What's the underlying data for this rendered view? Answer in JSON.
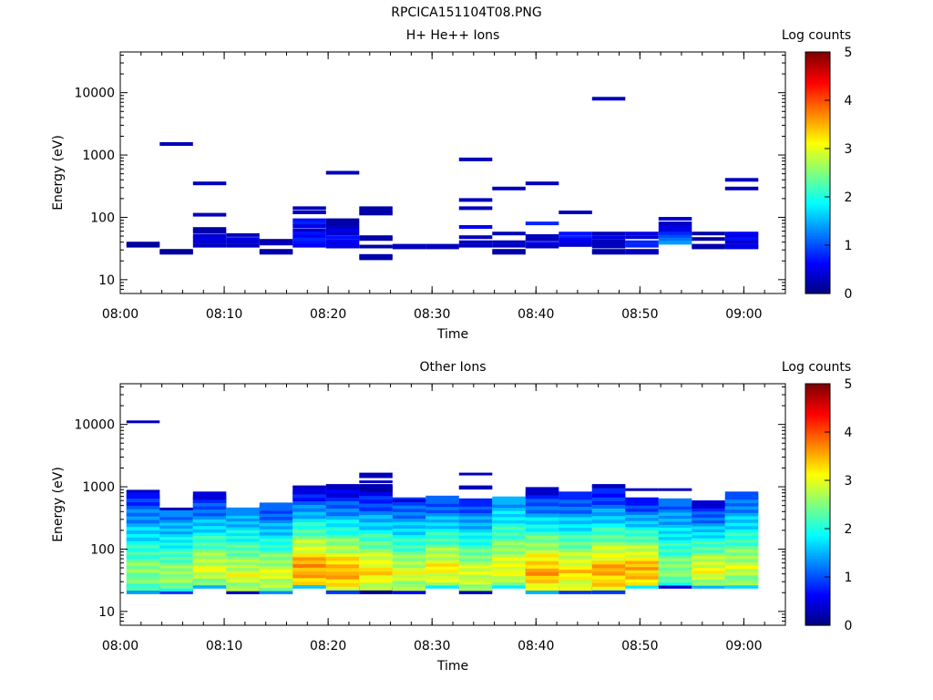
{
  "page_title": "RPCICA151104T08.PNG",
  "chart_data": [
    {
      "type": "heatmap",
      "title": "H+ He++ Ions",
      "xlabel": "Time",
      "ylabel": "Energy (eV)",
      "yscale": "log",
      "xlim": [
        "08:00",
        "09:04"
      ],
      "ylim": [
        6,
        45000
      ],
      "x_ticks": [
        "08:00",
        "08:10",
        "08:20",
        "08:30",
        "08:40",
        "08:50",
        "09:00"
      ],
      "y_ticks": [
        "10",
        "100",
        "1000",
        "10000"
      ],
      "colorbar": {
        "label": "Log counts",
        "range": [
          0,
          5
        ],
        "ticks": [
          "0",
          "1",
          "2",
          "3",
          "4",
          "5"
        ],
        "colormap": "jet"
      },
      "time_bins": [
        "08:02.2",
        "08:05.4",
        "08:08.6",
        "08:11.8",
        "08:15.0",
        "08:18.2",
        "08:21.4",
        "08:24.6",
        "08:27.8",
        "08:31.0",
        "08:34.2",
        "08:37.4",
        "08:40.6",
        "08:43.8",
        "08:47.0",
        "08:50.2",
        "08:53.4",
        "08:56.6",
        "08:59.8"
      ],
      "cells": [
        [
          0,
          38,
          0.15
        ],
        [
          0,
          35,
          0.15
        ],
        [
          1,
          1500,
          0.3
        ],
        [
          1,
          29,
          0.15
        ],
        [
          1,
          27,
          0.15
        ],
        [
          2,
          350,
          0.3
        ],
        [
          2,
          110,
          0.3
        ],
        [
          2,
          65,
          0.2
        ],
        [
          2,
          58,
          0.2
        ],
        [
          2,
          50,
          0.4
        ],
        [
          2,
          45,
          0.5
        ],
        [
          2,
          40,
          0.4
        ],
        [
          2,
          35,
          0.3
        ],
        [
          3,
          52,
          0.3
        ],
        [
          3,
          45,
          0.5
        ],
        [
          3,
          40,
          0.4
        ],
        [
          3,
          35,
          0.3
        ],
        [
          4,
          42,
          0.2
        ],
        [
          4,
          38,
          0.3
        ],
        [
          4,
          29,
          0.2
        ],
        [
          4,
          27,
          0.2
        ],
        [
          5,
          140,
          0.3
        ],
        [
          5,
          120,
          0.3
        ],
        [
          5,
          90,
          0.7
        ],
        [
          5,
          80,
          0.8
        ],
        [
          5,
          72,
          0.5
        ],
        [
          5,
          62,
          0.4
        ],
        [
          5,
          55,
          0.7
        ],
        [
          5,
          49,
          0.6
        ],
        [
          5,
          44,
          0.8
        ],
        [
          5,
          39,
          0.7
        ],
        [
          5,
          35,
          0.6
        ],
        [
          6,
          520,
          0.3
        ],
        [
          6,
          90,
          0.2
        ],
        [
          6,
          80,
          0.2
        ],
        [
          6,
          70,
          0.3
        ],
        [
          6,
          62,
          0.5
        ],
        [
          6,
          55,
          0.4
        ],
        [
          6,
          48,
          0.7
        ],
        [
          6,
          42,
          0.6
        ],
        [
          6,
          38,
          0.5
        ],
        [
          6,
          34,
          0.5
        ],
        [
          7,
          140,
          0.2
        ],
        [
          7,
          125,
          0.2
        ],
        [
          7,
          115,
          0.2
        ],
        [
          7,
          48,
          0.2
        ],
        [
          7,
          45,
          0.2
        ],
        [
          7,
          34,
          0.2
        ],
        [
          7,
          24,
          0.2
        ],
        [
          7,
          22,
          0.2
        ],
        [
          8,
          35,
          0.3
        ],
        [
          8,
          33,
          0.3
        ],
        [
          9,
          35,
          0.3
        ],
        [
          9,
          33,
          0.3
        ],
        [
          10,
          850,
          0.3
        ],
        [
          10,
          190,
          0.3
        ],
        [
          10,
          140,
          0.3
        ],
        [
          10,
          70,
          0.6
        ],
        [
          10,
          48,
          0.3
        ],
        [
          10,
          40,
          0.3
        ],
        [
          10,
          35,
          0.3
        ],
        [
          11,
          290,
          0.3
        ],
        [
          11,
          55,
          0.3
        ],
        [
          11,
          40,
          0.3
        ],
        [
          11,
          35,
          0.3
        ],
        [
          11,
          29,
          0.2
        ],
        [
          11,
          27,
          0.2
        ],
        [
          12,
          350,
          0.3
        ],
        [
          12,
          80,
          0.8
        ],
        [
          12,
          50,
          0.3
        ],
        [
          12,
          44,
          0.3
        ],
        [
          12,
          38,
          0.5
        ],
        [
          12,
          34,
          0.3
        ],
        [
          13,
          120,
          0.3
        ],
        [
          13,
          55,
          0.7
        ],
        [
          13,
          48,
          0.8
        ],
        [
          13,
          44,
          0.6
        ],
        [
          13,
          40,
          0.5
        ],
        [
          13,
          36,
          0.4
        ],
        [
          14,
          8000,
          0.3
        ],
        [
          14,
          55,
          0.3
        ],
        [
          14,
          48,
          0.5
        ],
        [
          14,
          42,
          0.3
        ],
        [
          14,
          38,
          0.3
        ],
        [
          14,
          34,
          0.3
        ],
        [
          14,
          29,
          0.2
        ],
        [
          14,
          27,
          0.2
        ],
        [
          15,
          55,
          0.5
        ],
        [
          15,
          48,
          0.4
        ],
        [
          15,
          40,
          0.8
        ],
        [
          15,
          35,
          0.8
        ],
        [
          15,
          29,
          0.3
        ],
        [
          15,
          27,
          0.3
        ],
        [
          16,
          95,
          0.4
        ],
        [
          16,
          80,
          0.3
        ],
        [
          16,
          70,
          0.5
        ],
        [
          16,
          62,
          0.5
        ],
        [
          16,
          55,
          0.8
        ],
        [
          16,
          49,
          1.0
        ],
        [
          16,
          44,
          1.2
        ],
        [
          16,
          39,
          1.4
        ],
        [
          17,
          55,
          0.2
        ],
        [
          17,
          45,
          0.2
        ],
        [
          17,
          35,
          0.2
        ],
        [
          17,
          33,
          0.2
        ],
        [
          18,
          400,
          0.3
        ],
        [
          18,
          290,
          0.3
        ],
        [
          18,
          55,
          0.6
        ],
        [
          18,
          50,
          0.5
        ],
        [
          18,
          45,
          0.7
        ],
        [
          18,
          40,
          0.4
        ],
        [
          18,
          35,
          0.5
        ],
        [
          18,
          33,
          0.5
        ]
      ]
    },
    {
      "type": "heatmap",
      "title": "Other Ions",
      "xlabel": "Time",
      "ylabel": "Energy (eV)",
      "yscale": "log",
      "xlim": [
        "08:00",
        "09:04"
      ],
      "ylim": [
        6,
        45000
      ],
      "x_ticks": [
        "08:00",
        "08:10",
        "08:20",
        "08:30",
        "08:40",
        "08:50",
        "09:00"
      ],
      "y_ticks": [
        "10",
        "100",
        "1000",
        "10000"
      ],
      "colorbar": {
        "label": "Log counts",
        "range": [
          0,
          5
        ],
        "ticks": [
          "0",
          "1",
          "2",
          "3",
          "4",
          "5"
        ],
        "colormap": "jet"
      },
      "time_bins": [
        "08:02.2",
        "08:05.4",
        "08:08.6",
        "08:11.8",
        "08:15.0",
        "08:18.2",
        "08:21.4",
        "08:24.6",
        "08:27.8",
        "08:31.0",
        "08:34.2",
        "08:37.4",
        "08:40.6",
        "08:43.8",
        "08:47.0",
        "08:50.2",
        "08:53.4",
        "08:56.6",
        "08:59.8"
      ],
      "sparse_cells": [
        [
          0,
          11000,
          0.3
        ],
        [
          0,
          850,
          0.3
        ],
        [
          1,
          440,
          0.3
        ],
        [
          5,
          1000,
          0.3
        ],
        [
          6,
          1050,
          0.3
        ],
        [
          6,
          950,
          0.3
        ],
        [
          7,
          1600,
          0.3
        ],
        [
          7,
          1450,
          0.3
        ],
        [
          7,
          1200,
          0.4
        ],
        [
          7,
          1000,
          0.3
        ],
        [
          8,
          600,
          0.4
        ],
        [
          10,
          1600,
          0.3
        ],
        [
          10,
          1000,
          0.3
        ],
        [
          10,
          950,
          0.3
        ],
        [
          14,
          1050,
          0.3
        ],
        [
          14,
          1000,
          0.3
        ],
        [
          15,
          900,
          0.3
        ],
        [
          16,
          900,
          0.3
        ],
        [
          17,
          520,
          0.3
        ]
      ],
      "columns": [
        {
          "top": 750,
          "bottom": 22,
          "low_band": 1.4,
          "max_color": 2.6,
          "top_color": 0.8
        },
        {
          "top": 380,
          "bottom": 22,
          "low_band": 0.9,
          "max_color": 2.7,
          "top_color": 1.2
        },
        {
          "top": 720,
          "bottom": 27,
          "low_band": 1.5,
          "max_color": 3.0,
          "top_color": 0.7
        },
        {
          "top": 400,
          "bottom": 22,
          "low_band": 0.3,
          "max_color": 3.0,
          "top_color": 1.3
        },
        {
          "top": 480,
          "bottom": 22,
          "low_band": 1.3,
          "max_color": 3.0,
          "top_color": 0.9
        },
        {
          "top": 880,
          "bottom": 27,
          "low_band": 1.6,
          "max_color": 3.7,
          "top_color": 0.6
        },
        {
          "top": 900,
          "bottom": 22,
          "low_band": 0.9,
          "max_color": 3.6,
          "top_color": 0.5
        },
        {
          "top": 950,
          "bottom": 22,
          "low_band": 0.1,
          "max_color": 3.3,
          "top_color": 0.4
        },
        {
          "top": 580,
          "bottom": 22,
          "low_band": 0.6,
          "max_color": 3.0,
          "top_color": 0.9
        },
        {
          "top": 620,
          "bottom": 27,
          "low_band": 1.8,
          "max_color": 3.2,
          "top_color": 0.9
        },
        {
          "top": 560,
          "bottom": 22,
          "low_band": 0.3,
          "max_color": 3.0,
          "top_color": 0.9
        },
        {
          "top": 600,
          "bottom": 27,
          "low_band": 1.8,
          "max_color": 3.1,
          "top_color": 1.4
        },
        {
          "top": 850,
          "bottom": 22,
          "low_band": 1.5,
          "max_color": 3.6,
          "top_color": 0.6
        },
        {
          "top": 720,
          "bottom": 22,
          "low_band": 0.9,
          "max_color": 3.3,
          "top_color": 0.8
        },
        {
          "top": 900,
          "bottom": 22,
          "low_band": 0.9,
          "max_color": 3.6,
          "top_color": 0.6
        },
        {
          "top": 580,
          "bottom": 27,
          "low_band": 1.8,
          "max_color": 3.6,
          "top_color": 0.8
        },
        {
          "top": 560,
          "bottom": 27,
          "low_band": 0.4,
          "max_color": 2.6,
          "top_color": 1.1
        },
        {
          "top": 520,
          "bottom": 27,
          "low_band": 1.5,
          "max_color": 3.1,
          "top_color": 0.7
        },
        {
          "top": 720,
          "bottom": 27,
          "low_band": 1.7,
          "max_color": 2.9,
          "top_color": 1.0
        }
      ]
    }
  ]
}
